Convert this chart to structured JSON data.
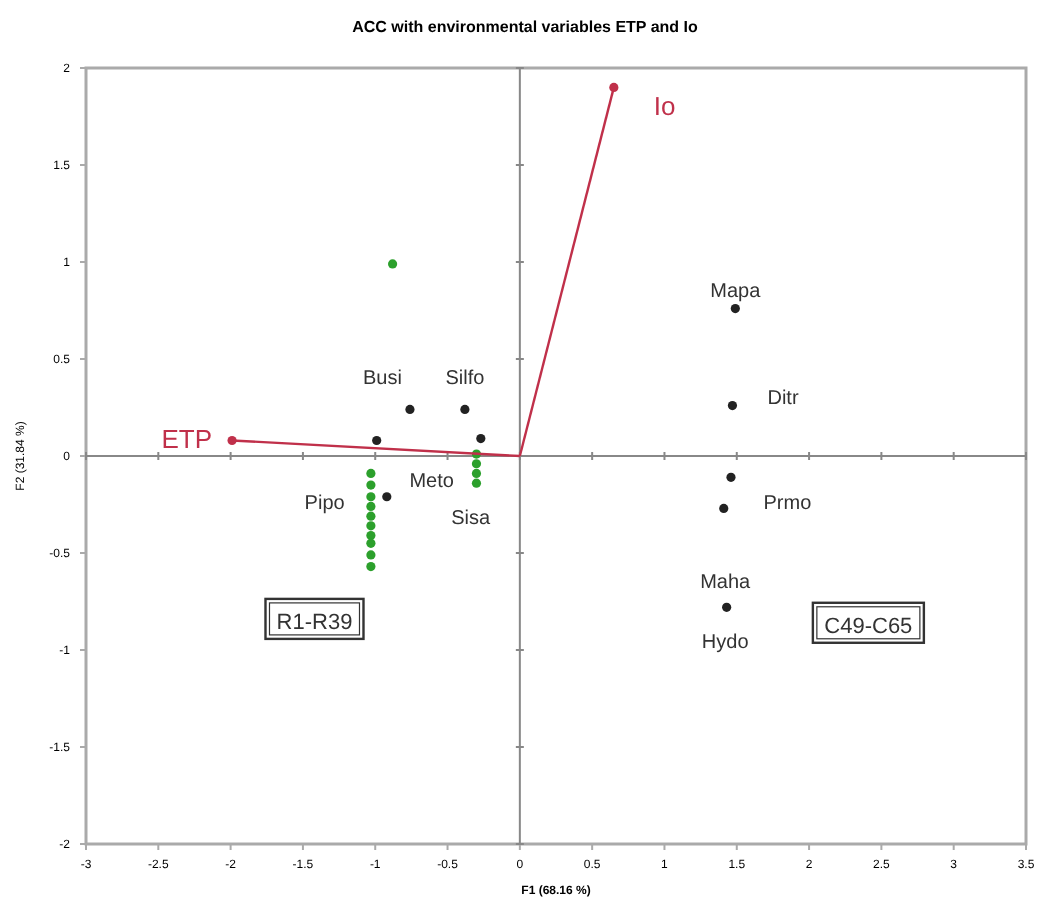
{
  "chart_data": {
    "type": "scatter",
    "title": "ACC with environmental variables ETP and Io",
    "xlabel": "F1 (68.16 %)",
    "ylabel": "F2 (31.84 %)",
    "xlim": [
      -3,
      3.5
    ],
    "xticks": [
      -3,
      -2.5,
      -2,
      -1.5,
      -1,
      -0.5,
      0,
      0.5,
      1,
      1.5,
      2,
      2.5,
      3,
      3.5
    ],
    "ylim": [
      -2,
      2
    ],
    "yticks": [
      -2,
      -1.5,
      -1,
      -0.5,
      0,
      0.5,
      1,
      1.5,
      2
    ],
    "marker": "circle",
    "series": [
      {
        "color": "#2ca02c",
        "x": [
          -0.88,
          -1.03,
          -1.03,
          -1.03,
          -1.03,
          -1.03,
          -1.03,
          -1.03,
          -1.03,
          -1.03,
          -1.03,
          -0.3,
          -0.3,
          -0.3,
          -0.3
        ],
        "values": [
          0.99,
          -0.09,
          -0.15,
          -0.21,
          -0.26,
          -0.31,
          -0.36,
          -0.41,
          -0.45,
          -0.51,
          -0.57,
          0.01,
          -0.04,
          -0.09,
          -0.14
        ]
      },
      {
        "color": "#222222",
        "x": [
          -0.76,
          -0.38,
          -0.99,
          -0.27,
          -0.92,
          1.49,
          1.47,
          1.46,
          1.41,
          1.43
        ],
        "values": [
          0.24,
          0.24,
          0.08,
          0.09,
          -0.21,
          0.76,
          0.26,
          -0.11,
          -0.27,
          -0.78
        ]
      },
      {
        "type": "line",
        "name": "ETP",
        "color": "#c0304a",
        "x": [
          0,
          -1.99
        ],
        "values": [
          0,
          0.08
        ]
      },
      {
        "type": "line",
        "name": "Io",
        "color": "#c0304a",
        "x": [
          0,
          0.65
        ],
        "values": [
          0,
          1.9
        ]
      }
    ],
    "annotations": [
      "Busi",
      "Silfo",
      "Meto",
      "Sisa",
      "Pipo",
      "Mapa",
      "Ditr",
      "Prmo",
      "Maha",
      "Hydo",
      "R1-R39",
      "C49-C65"
    ]
  }
}
